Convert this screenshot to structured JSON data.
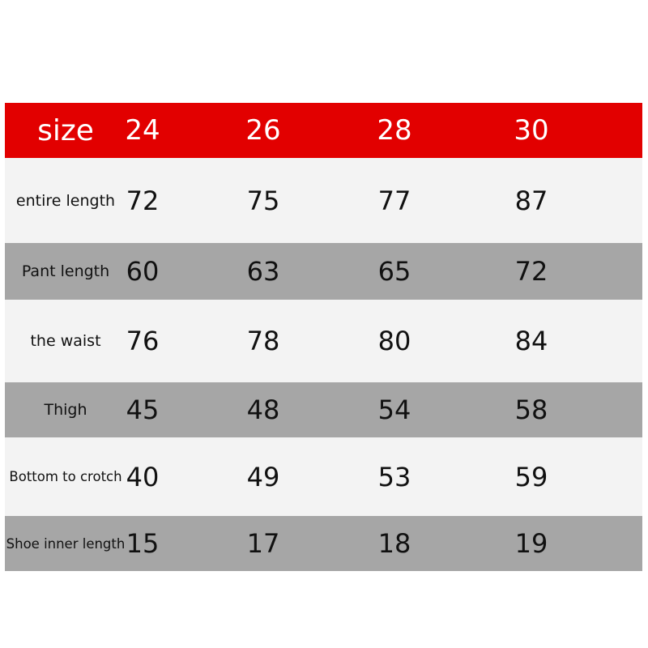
{
  "header": {
    "label": "size",
    "sizes": [
      "24",
      "26",
      "28",
      "30"
    ]
  },
  "colors": {
    "header": "#e20000",
    "row_light": "#f3f3f3",
    "row_gray": "#a6a6a6"
  },
  "rows": [
    {
      "label": "entire length",
      "values": [
        "72",
        "75",
        "77",
        "87"
      ]
    },
    {
      "label": "Pant length",
      "values": [
        "60",
        "63",
        "65",
        "72"
      ]
    },
    {
      "label": "the waist",
      "values": [
        "76",
        "78",
        "80",
        "84"
      ]
    },
    {
      "label": "Thigh",
      "values": [
        "45",
        "48",
        "54",
        "58"
      ]
    },
    {
      "label": "Bottom to crotch",
      "values": [
        "40",
        "49",
        "53",
        "59"
      ]
    },
    {
      "label": "Shoe inner length",
      "values": [
        "15",
        "17",
        "18",
        "19"
      ]
    }
  ]
}
